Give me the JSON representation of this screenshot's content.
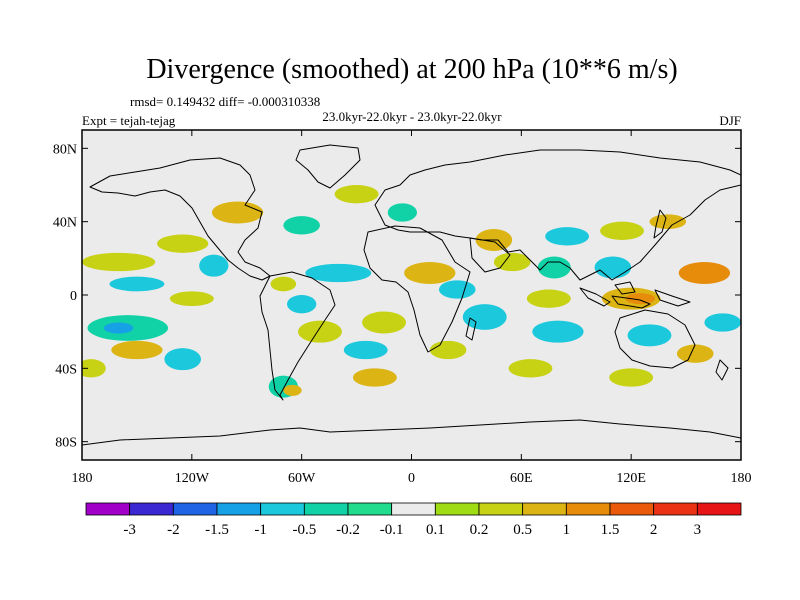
{
  "title": "Divergence (smoothed) at 200 hPa (10**6 m/s)",
  "stats": "rmsd= 0.149432 diff= -0.000310338",
  "experiment": "Expt = tejah-tejag",
  "period": "23.0kyr-22.0kyr - 23.0kyr-22.0kyr",
  "season": "DJF",
  "map": {
    "lon_ticks": [
      "180",
      "120W",
      "60W",
      "0",
      "60E",
      "120E",
      "180"
    ],
    "lat_ticks": [
      "80N",
      "40N",
      "0",
      "40S",
      "80S"
    ],
    "background_color": "#ebebeb",
    "coast_color": "#000000"
  },
  "colorbar": {
    "labels": [
      "-3",
      "-2",
      "-1.5",
      "-1",
      "-0.5",
      "-0.2",
      "-0.1",
      "0.1",
      "0.2",
      "0.5",
      "1",
      "1.5",
      "2",
      "3"
    ],
    "colors": [
      "#a000c8",
      "#3c28d2",
      "#2064e6",
      "#16a0e6",
      "#1cc8dc",
      "#10d2a6",
      "#20dc8c",
      "#ebebeb",
      "#a0dc14",
      "#c8d214",
      "#dcb414",
      "#e68c0a",
      "#eb5a0a",
      "#eb3214",
      "#e61414"
    ]
  },
  "patches": [
    {
      "name": "anomaly-patch-w-pacific-15n",
      "lon": 160,
      "lat": 12,
      "rlon": 14,
      "rlat": 6,
      "cls": 11
    },
    {
      "name": "anomaly-patch-c-pacific-20n",
      "lon": -160,
      "lat": 18,
      "rlon": 20,
      "rlat": 5,
      "cls": 9
    },
    {
      "name": "anomaly-patch-pacific-10n",
      "lon": -150,
      "lat": 6,
      "rlon": 15,
      "rlat": 4,
      "cls": 4
    },
    {
      "name": "anomaly-patch-ne-pacific-30n",
      "lon": -125,
      "lat": 28,
      "rlon": 14,
      "rlat": 5,
      "cls": 9
    },
    {
      "name": "anomaly-patch-mexico-20n",
      "lon": -108,
      "lat": 16,
      "rlon": 8,
      "rlat": 6,
      "cls": 4
    },
    {
      "name": "anomaly-patch-e-pacific-eq",
      "lon": -120,
      "lat": -2,
      "rlon": 12,
      "rlat": 4,
      "cls": 9
    },
    {
      "name": "anomaly-patch-s-pacific-20s",
      "lon": -155,
      "lat": -18,
      "rlon": 22,
      "rlat": 7,
      "cls": 5
    },
    {
      "name": "anomaly-patch-s-pacific-core",
      "lon": -160,
      "lat": -18,
      "rlon": 8,
      "rlat": 3,
      "cls": 3
    },
    {
      "name": "anomaly-patch-s-pacific-30s",
      "lon": -150,
      "lat": -30,
      "rlon": 14,
      "rlat": 5,
      "cls": 10
    },
    {
      "name": "anomaly-patch-s-pacific-40s",
      "lon": -175,
      "lat": -40,
      "rlon": 8,
      "rlat": 5,
      "cls": 9
    },
    {
      "name": "anomaly-patch-se-pacific-40s",
      "lon": -125,
      "lat": -35,
      "rlon": 10,
      "rlat": 6,
      "cls": 4
    },
    {
      "name": "anomaly-patch-n-america-45n",
      "lon": -95,
      "lat": 45,
      "rlon": 14,
      "rlat": 6,
      "cls": 10
    },
    {
      "name": "anomaly-patch-atlantic-35n",
      "lon": -60,
      "lat": 38,
      "rlon": 10,
      "rlat": 5,
      "cls": 5
    },
    {
      "name": "anomaly-patch-n-atlantic-55n",
      "lon": -30,
      "lat": 55,
      "rlon": 12,
      "rlat": 5,
      "cls": 9
    },
    {
      "name": "anomaly-patch-w-europe-45n",
      "lon": -5,
      "lat": 45,
      "rlon": 8,
      "rlat": 5,
      "cls": 5
    },
    {
      "name": "anomaly-patch-trop-atlantic-10n",
      "lon": -40,
      "lat": 12,
      "rlon": 18,
      "rlat": 5,
      "cls": 4
    },
    {
      "name": "anomaly-patch-caribbean-5n",
      "lon": -70,
      "lat": 6,
      "rlon": 7,
      "rlat": 4,
      "cls": 9
    },
    {
      "name": "anomaly-patch-amazon-eq",
      "lon": -60,
      "lat": -5,
      "rlon": 8,
      "rlat": 5,
      "cls": 4
    },
    {
      "name": "anomaly-patch-s-america-20s",
      "lon": -50,
      "lat": -20,
      "rlon": 12,
      "rlat": 6,
      "cls": 9
    },
    {
      "name": "anomaly-patch-s-atlantic-15s",
      "lon": -15,
      "lat": -15,
      "rlon": 12,
      "rlat": 6,
      "cls": 9
    },
    {
      "name": "anomaly-patch-s-atlantic-30s",
      "lon": -25,
      "lat": -30,
      "rlon": 12,
      "rlat": 5,
      "cls": 4
    },
    {
      "name": "anomaly-patch-s-atlantic-45s",
      "lon": -20,
      "lat": -45,
      "rlon": 12,
      "rlat": 5,
      "cls": 10
    },
    {
      "name": "anomaly-patch-patagonia",
      "lon": -70,
      "lat": -50,
      "rlon": 8,
      "rlat": 6,
      "cls": 5
    },
    {
      "name": "anomaly-patch-patagonia-core",
      "lon": -65,
      "lat": -52,
      "rlon": 5,
      "rlat": 3,
      "cls": 10
    },
    {
      "name": "anomaly-patch-africa-15n",
      "lon": 10,
      "lat": 12,
      "rlon": 14,
      "rlat": 6,
      "cls": 10
    },
    {
      "name": "anomaly-patch-africa-5n",
      "lon": 25,
      "lat": 3,
      "rlon": 10,
      "rlat": 5,
      "cls": 4
    },
    {
      "name": "anomaly-patch-e-africa-15s",
      "lon": 40,
      "lat": -12,
      "rlon": 12,
      "rlat": 7,
      "cls": 4
    },
    {
      "name": "anomaly-patch-s-africa-30s",
      "lon": 20,
      "lat": -30,
      "rlon": 10,
      "rlat": 5,
      "cls": 9
    },
    {
      "name": "anomaly-patch-mideast-30n",
      "lon": 45,
      "lat": 30,
      "rlon": 10,
      "rlat": 6,
      "cls": 10
    },
    {
      "name": "anomaly-patch-arabia-18n",
      "lon": 55,
      "lat": 18,
      "rlon": 10,
      "rlat": 5,
      "cls": 9
    },
    {
      "name": "anomaly-patch-tibet-30n",
      "lon": 85,
      "lat": 32,
      "rlon": 12,
      "rlat": 5,
      "cls": 4
    },
    {
      "name": "anomaly-patch-india-15n",
      "lon": 78,
      "lat": 15,
      "rlon": 9,
      "rlat": 6,
      "cls": 5
    },
    {
      "name": "anomaly-patch-indian-ocean-eq",
      "lon": 75,
      "lat": -2,
      "rlon": 12,
      "rlat": 5,
      "cls": 9
    },
    {
      "name": "anomaly-patch-indian-ocean-20s",
      "lon": 80,
      "lat": -20,
      "rlon": 14,
      "rlat": 6,
      "cls": 4
    },
    {
      "name": "anomaly-patch-s-indian-40s",
      "lon": 65,
      "lat": -40,
      "rlon": 12,
      "rlat": 5,
      "cls": 9
    },
    {
      "name": "anomaly-patch-se-asia-15n",
      "lon": 110,
      "lat": 15,
      "rlon": 10,
      "rlat": 6,
      "cls": 4
    },
    {
      "name": "anomaly-patch-china-35n",
      "lon": 115,
      "lat": 35,
      "rlon": 12,
      "rlat": 5,
      "cls": 9
    },
    {
      "name": "anomaly-patch-japan-40n",
      "lon": 140,
      "lat": 40,
      "rlon": 10,
      "rlat": 4,
      "cls": 10
    },
    {
      "name": "anomaly-patch-maritime-eq",
      "lon": 120,
      "lat": -2,
      "rlon": 16,
      "rlat": 6,
      "cls": 10
    },
    {
      "name": "anomaly-patch-maritime-core",
      "lon": 125,
      "lat": -2,
      "rlon": 8,
      "rlat": 3,
      "cls": 11
    },
    {
      "name": "anomaly-patch-australia-25s",
      "lon": 130,
      "lat": -22,
      "rlon": 12,
      "rlat": 6,
      "cls": 4
    },
    {
      "name": "anomaly-patch-tasman-35s",
      "lon": 155,
      "lat": -32,
      "rlon": 10,
      "rlat": 5,
      "cls": 10
    },
    {
      "name": "anomaly-patch-s-ocean-45s",
      "lon": 120,
      "lat": -45,
      "rlon": 12,
      "rlat": 5,
      "cls": 9
    },
    {
      "name": "anomaly-patch-sw-pacific-15s",
      "lon": 170,
      "lat": -15,
      "rlon": 10,
      "rlat": 5,
      "cls": 4
    }
  ]
}
